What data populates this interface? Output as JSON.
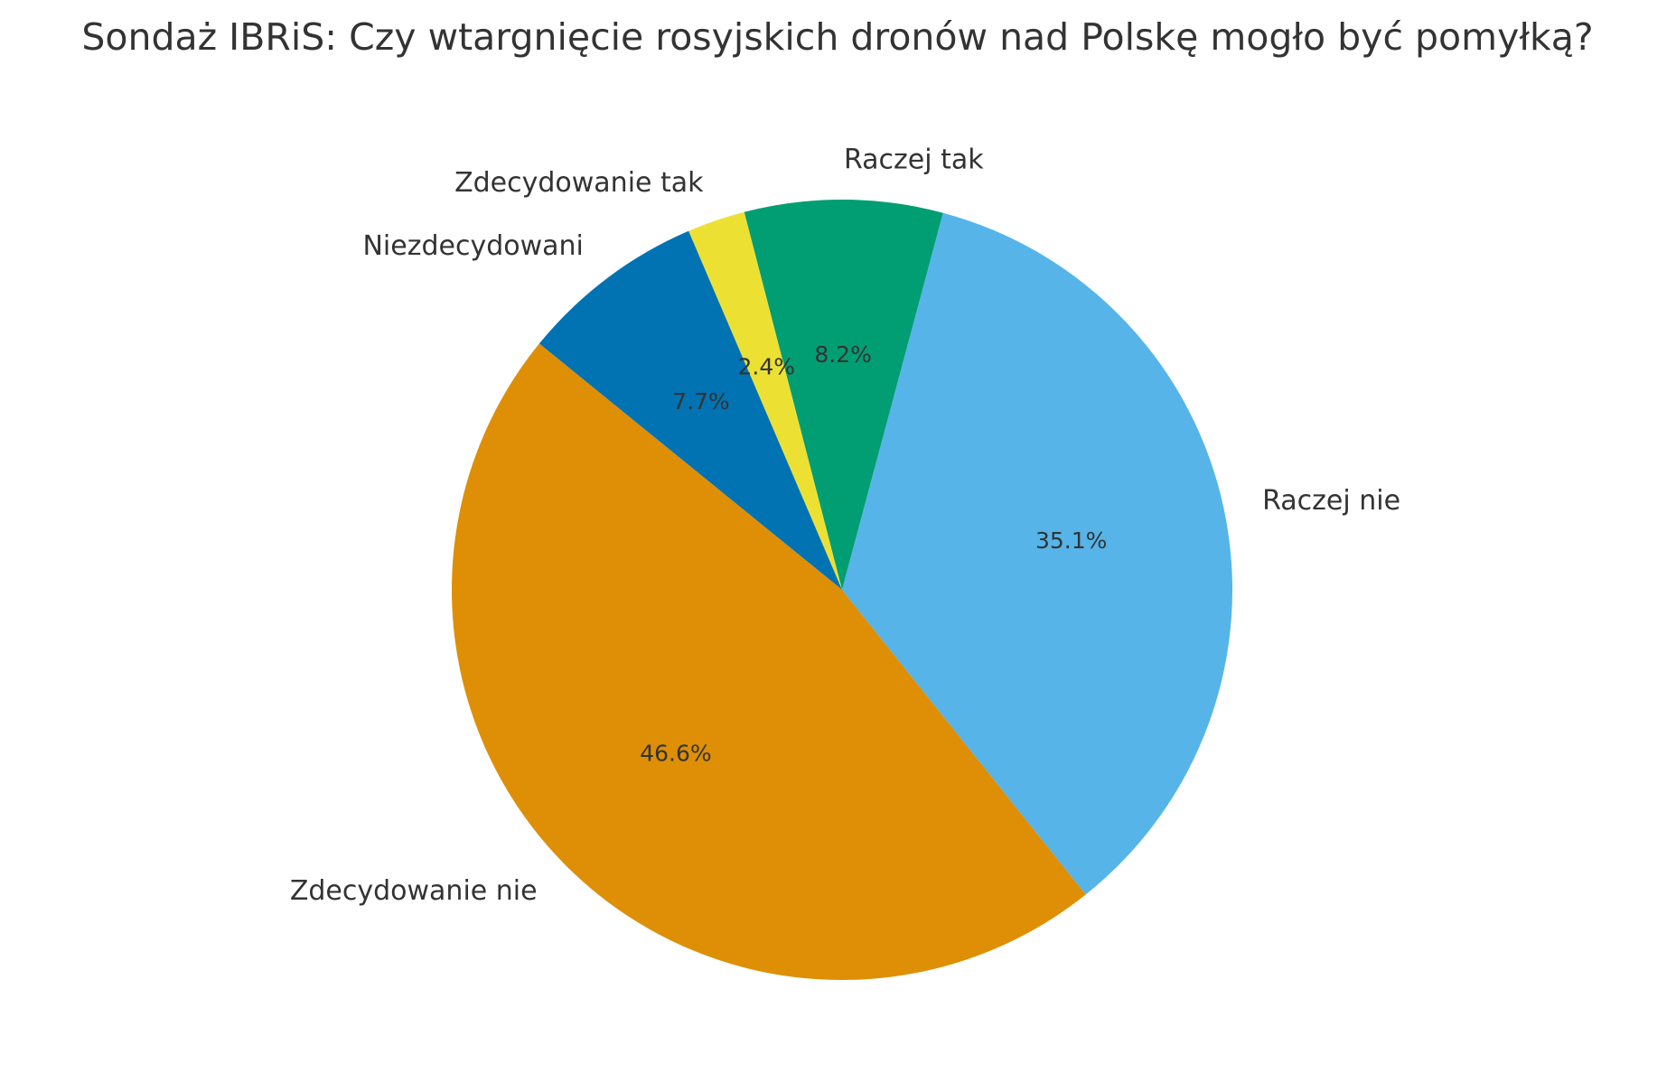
{
  "chart_data": {
    "type": "pie",
    "title": "Sondaż IBRiS: Czy wtargnięcie rosyjskich dronów nad Polskę mogło być pomyłką?",
    "slices": [
      {
        "label": "Raczej tak",
        "value": 8.2,
        "pct_label": "8.2%",
        "color": "#029E73"
      },
      {
        "label": "Zdecydowanie tak",
        "value": 2.4,
        "pct_label": "2.4%",
        "color": "#ECE133"
      },
      {
        "label": "Niezdecydowani",
        "value": 7.7,
        "pct_label": "7.7%",
        "color": "#0173B2"
      },
      {
        "label": "Zdecydowanie nie",
        "value": 46.6,
        "pct_label": "46.6%",
        "color": "#DE8F05"
      },
      {
        "label": "Raczej nie",
        "value": 35.1,
        "pct_label": "35.1%",
        "color": "#56B4E9"
      }
    ],
    "start_angle_deg": 75,
    "direction": "counterclockwise",
    "legend": false
  }
}
